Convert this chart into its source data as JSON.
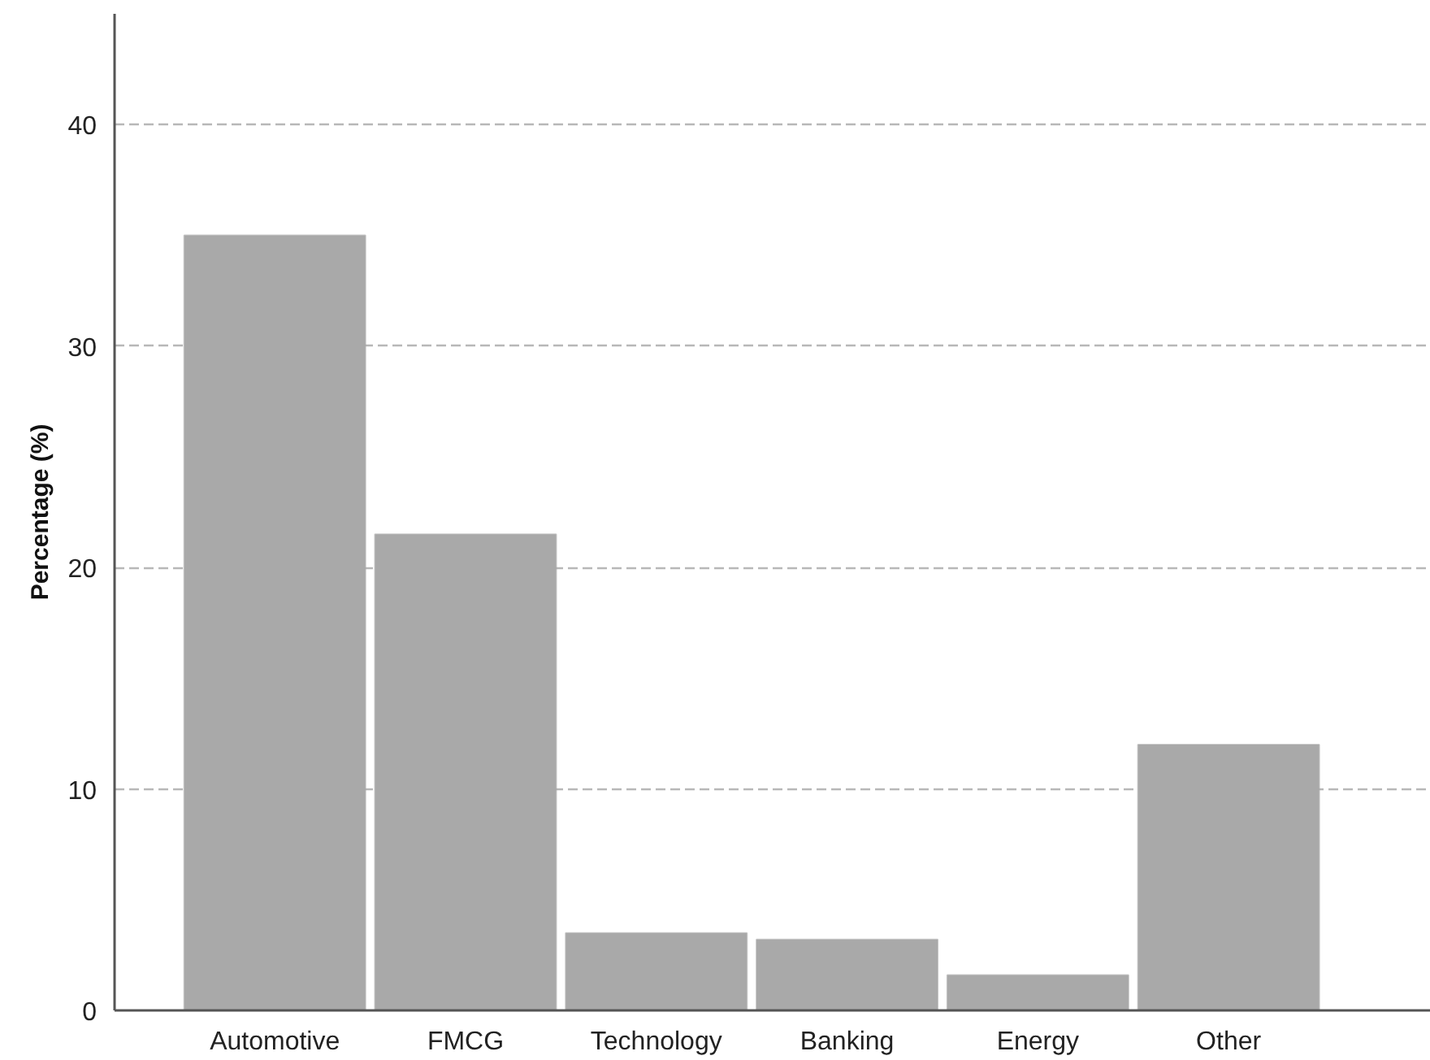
{
  "chart_data": {
    "type": "bar",
    "ylabel": "Percentage (%)",
    "categories": [
      "Automotive",
      "FMCG",
      "Technology",
      "Banking",
      "Energy",
      "Other"
    ],
    "values": [
      35,
      21.5,
      3.5,
      3.2,
      1.6,
      12.0
    ],
    "color": "#a9a9a9",
    "ylim": [
      0,
      45
    ],
    "yticks": [
      0,
      10,
      20,
      30,
      40
    ],
    "grid": "y"
  }
}
